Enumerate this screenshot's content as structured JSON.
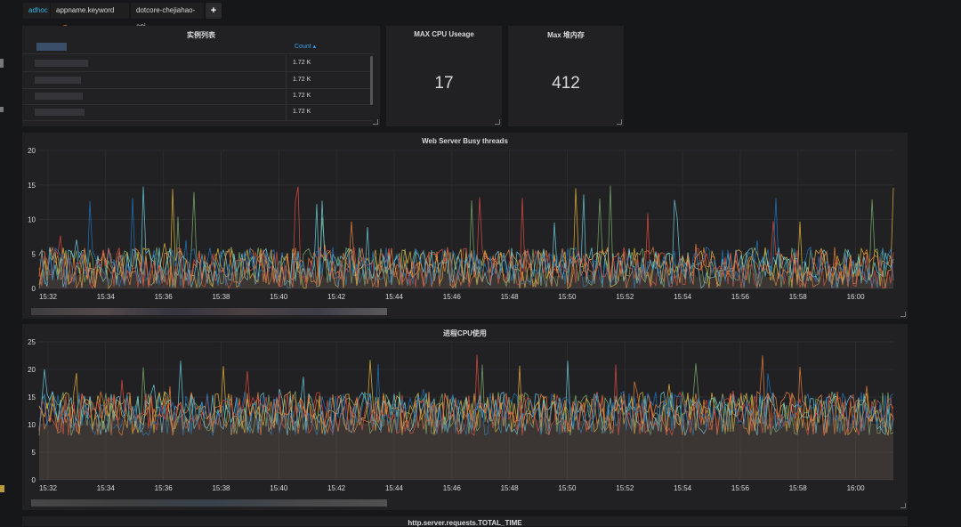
{
  "topbar": {
    "adhoc_label": "adhoc",
    "filter_key": "appname.keyword",
    "filter_op": "=",
    "filter_value": "dotcore-chejiahao-api",
    "add_label": "+"
  },
  "instance_table": {
    "title": "实例列表",
    "count_header": "Count ▴",
    "rows": [
      {
        "count": "1.72 K"
      },
      {
        "count": "1.72 K"
      },
      {
        "count": "1.72 K"
      },
      {
        "count": "1.72 K"
      }
    ]
  },
  "cpu_stat": {
    "title": "MAX CPU Useage",
    "value": "17"
  },
  "heap_stat": {
    "title": "Max 堆内存",
    "value": "412"
  },
  "colors": {
    "series": [
      "#7eb26d",
      "#eab839",
      "#6ed0e0",
      "#ef843c",
      "#e24d42",
      "#1f78c1",
      "#ba43a9",
      "#705da0",
      "#508642",
      "#cca300",
      "#6d8cd6"
    ],
    "grid": "#2c2c30",
    "axis_text": "#d8d9da"
  },
  "charts": [
    {
      "title": "Web Server Busy threads",
      "chart_data": {
        "type": "line",
        "x_ticks": [
          "15:32",
          "15:34",
          "15:36",
          "15:38",
          "15:40",
          "15:42",
          "15:44",
          "15:46",
          "15:48",
          "15:50",
          "15:52",
          "15:54",
          "15:56",
          "15:58",
          "16:00"
        ],
        "y_ticks": [
          "0",
          "5",
          "10",
          "15",
          "20"
        ],
        "ylim": [
          0,
          20
        ],
        "noise": {
          "base": 3,
          "spread": 3,
          "spike_max": 15,
          "seed": 7
        }
      }
    },
    {
      "title": "进程CPU使用",
      "chart_data": {
        "type": "line",
        "x_ticks": [
          "15:32",
          "15:34",
          "15:36",
          "15:38",
          "15:40",
          "15:42",
          "15:44",
          "15:46",
          "15:48",
          "15:50",
          "15:52",
          "15:54",
          "15:56",
          "15:58",
          "16:00"
        ],
        "y_ticks": [
          "0",
          "5",
          "10",
          "15",
          "20",
          "25"
        ],
        "ylim": [
          0,
          25
        ],
        "noise": {
          "base": 12,
          "spread": 4,
          "spike_max": 23,
          "seed": 13
        }
      }
    }
  ],
  "bottom_panel": {
    "title": "http.server.requests.TOTAL_TIME"
  }
}
